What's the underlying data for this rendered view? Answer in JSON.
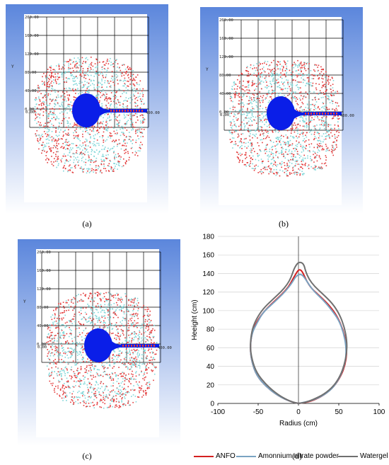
{
  "panels": [
    {
      "id": "a",
      "caption": "(a)",
      "axis_label": "Y",
      "y_ticks": [
        "200.00",
        "160.00",
        "120.00",
        "80.00",
        "40.00",
        "0.00"
      ],
      "x_ticks": [
        "0.00",
        "400.00"
      ]
    },
    {
      "id": "b",
      "caption": "(b)",
      "axis_label": "Y",
      "y_ticks": [
        "200.00",
        "160.00",
        "120.00",
        "80.00",
        "40.00",
        "0.00"
      ],
      "x_ticks": [
        "0.00",
        "400.00"
      ]
    },
    {
      "id": "c",
      "caption": "(c)",
      "axis_label": "Y",
      "y_ticks": [
        "200.00",
        "160.00",
        "120.00",
        "80.00",
        "40.00",
        "0.00"
      ],
      "x_ticks": [
        "0.00",
        "400.00"
      ]
    }
  ],
  "colors": {
    "panel_gradient_top": "#5b86dc",
    "panel_gradient_bottom": "#ffffff",
    "blast_core": "#0a1ee8",
    "damage_red": "#e23a3a",
    "damage_cyan": "#7fd6d8",
    "anfo": "#d42020",
    "ammonium_nitrate_powder": "#7aa3c2",
    "watergel": "#707070"
  },
  "chart_caption": "(d)",
  "chart_data": {
    "type": "line",
    "xlabel": "Radius (cm)",
    "ylabel": "Heeight (cm)",
    "xlim": [
      -100,
      100
    ],
    "ylim": [
      0,
      180
    ],
    "x_ticks": [
      -100,
      -50,
      0,
      50,
      100
    ],
    "y_ticks": [
      0,
      20,
      40,
      60,
      80,
      100,
      120,
      140,
      160,
      180
    ],
    "grid": "horizontal",
    "legend_position": "bottom",
    "series": [
      {
        "name": "ANFO",
        "color": "#d42020",
        "points": [
          [
            0,
            0
          ],
          [
            -10,
            2
          ],
          [
            -25,
            8
          ],
          [
            -40,
            18
          ],
          [
            -52,
            30
          ],
          [
            -58,
            45
          ],
          [
            -60,
            60
          ],
          [
            -58,
            75
          ],
          [
            -52,
            88
          ],
          [
            -42,
            100
          ],
          [
            -30,
            110
          ],
          [
            -20,
            118
          ],
          [
            -12,
            126
          ],
          [
            -7,
            134
          ],
          [
            -3,
            140
          ],
          [
            0,
            144
          ],
          [
            3,
            144
          ],
          [
            6,
            140
          ],
          [
            10,
            132
          ],
          [
            16,
            124
          ],
          [
            26,
            116
          ],
          [
            38,
            106
          ],
          [
            48,
            94
          ],
          [
            55,
            80
          ],
          [
            59,
            66
          ],
          [
            60,
            55
          ],
          [
            58,
            42
          ],
          [
            53,
            30
          ],
          [
            44,
            18
          ],
          [
            32,
            9
          ],
          [
            18,
            3
          ],
          [
            8,
            1
          ],
          [
            0,
            0
          ]
        ]
      },
      {
        "name": "Amonnium nitrate powder",
        "color": "#7aa3c2",
        "points": [
          [
            0,
            0
          ],
          [
            -10,
            2
          ],
          [
            -25,
            8
          ],
          [
            -40,
            18
          ],
          [
            -52,
            30
          ],
          [
            -58,
            45
          ],
          [
            -60,
            60
          ],
          [
            -58,
            75
          ],
          [
            -52,
            86
          ],
          [
            -44,
            98
          ],
          [
            -34,
            106
          ],
          [
            -24,
            114
          ],
          [
            -15,
            122
          ],
          [
            -8,
            130
          ],
          [
            -4,
            136
          ],
          [
            0,
            139
          ],
          [
            4,
            139
          ],
          [
            8,
            135
          ],
          [
            13,
            128
          ],
          [
            20,
            120
          ],
          [
            30,
            112
          ],
          [
            40,
            102
          ],
          [
            50,
            90
          ],
          [
            56,
            76
          ],
          [
            59,
            62
          ],
          [
            59,
            50
          ],
          [
            56,
            38
          ],
          [
            50,
            26
          ],
          [
            42,
            16
          ],
          [
            30,
            8
          ],
          [
            16,
            3
          ],
          [
            6,
            1
          ],
          [
            0,
            0
          ]
        ]
      },
      {
        "name": "Watergel",
        "color": "#707070",
        "points": [
          [
            0,
            0
          ],
          [
            -10,
            2
          ],
          [
            -25,
            9
          ],
          [
            -40,
            20
          ],
          [
            -52,
            33
          ],
          [
            -58,
            48
          ],
          [
            -60,
            62
          ],
          [
            -58,
            78
          ],
          [
            -53,
            90
          ],
          [
            -44,
            102
          ],
          [
            -32,
            112
          ],
          [
            -22,
            120
          ],
          [
            -14,
            128
          ],
          [
            -9,
            136
          ],
          [
            -6,
            144
          ],
          [
            -3,
            149
          ],
          [
            0,
            152
          ],
          [
            4,
            152
          ],
          [
            7,
            149
          ],
          [
            9,
            142
          ],
          [
            13,
            134
          ],
          [
            20,
            126
          ],
          [
            30,
            118
          ],
          [
            42,
            108
          ],
          [
            51,
            96
          ],
          [
            57,
            82
          ],
          [
            60,
            68
          ],
          [
            60,
            55
          ],
          [
            57,
            42
          ],
          [
            52,
            30
          ],
          [
            44,
            19
          ],
          [
            32,
            10
          ],
          [
            18,
            4
          ],
          [
            8,
            1
          ],
          [
            0,
            0
          ]
        ]
      }
    ]
  }
}
